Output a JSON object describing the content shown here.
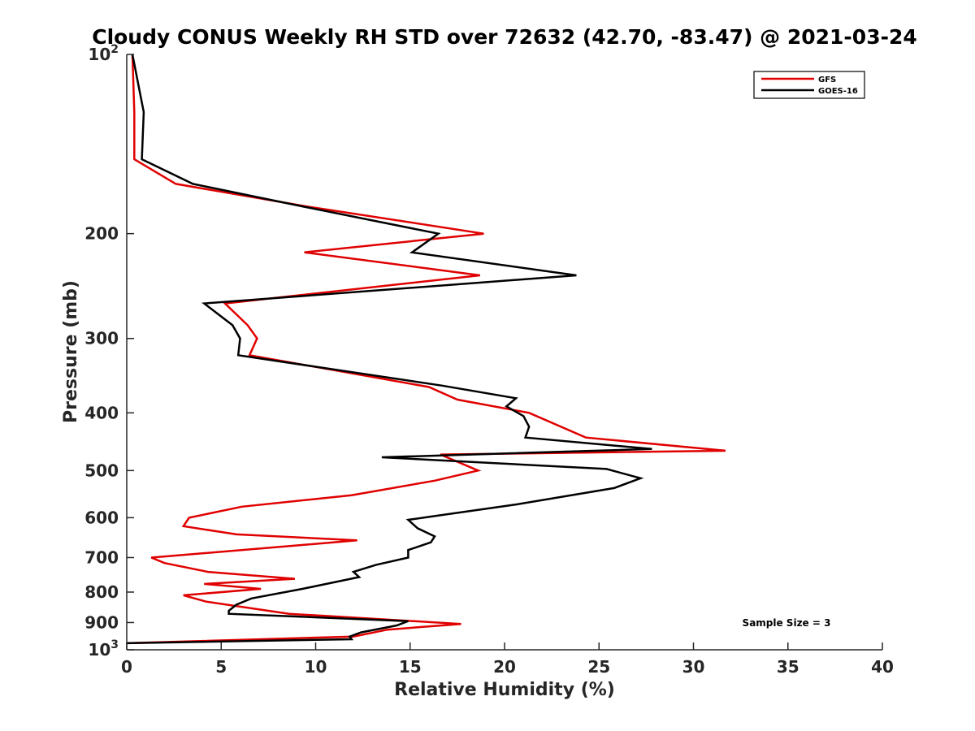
{
  "chart_data": {
    "type": "line",
    "title": "Cloudy CONUS Weekly RH STD over 72632 (42.70, -83.47) @ 2021-03-24",
    "xlabel": "Relative Humidity (%)",
    "ylabel": "Pressure (mb)",
    "xlim": [
      0,
      40
    ],
    "ylim": [
      100,
      1000
    ],
    "y_scale": "log",
    "y_reversed": true,
    "x_ticks": [
      0,
      5,
      10,
      15,
      20,
      25,
      30,
      35,
      40
    ],
    "y_ticks": [
      {
        "value": 100,
        "base": "10",
        "exp": "2"
      },
      {
        "value": 200,
        "label": "200"
      },
      {
        "value": 300,
        "label": "300"
      },
      {
        "value": 400,
        "label": "400"
      },
      {
        "value": 500,
        "label": "500"
      },
      {
        "value": 600,
        "label": "600"
      },
      {
        "value": 700,
        "label": "700"
      },
      {
        "value": 800,
        "label": "800"
      },
      {
        "value": 900,
        "label": "900"
      },
      {
        "value": 1000,
        "base": "10",
        "exp": "3"
      }
    ],
    "legend_position": "top-right",
    "annotation": "Sample Size = 3",
    "series": [
      {
        "name": "GFS",
        "color": "#e00000",
        "points": [
          [
            0.3,
            100
          ],
          [
            0.4,
            125
          ],
          [
            0.4,
            150
          ],
          [
            2.6,
            165
          ],
          [
            9.5,
            180
          ],
          [
            18.9,
            200
          ],
          [
            9.4,
            215
          ],
          [
            18.7,
            235
          ],
          [
            5.2,
            262
          ],
          [
            6.4,
            285
          ],
          [
            6.9,
            300
          ],
          [
            6.5,
            320
          ],
          [
            16.0,
            362
          ],
          [
            17.5,
            380
          ],
          [
            21.3,
            400
          ],
          [
            24.3,
            440
          ],
          [
            31.7,
            463
          ],
          [
            16.6,
            470
          ],
          [
            18.6,
            500
          ],
          [
            16.3,
            520
          ],
          [
            11.9,
            550
          ],
          [
            6.1,
            575
          ],
          [
            3.3,
            600
          ],
          [
            3.0,
            620
          ],
          [
            5.8,
            640
          ],
          [
            12.2,
            655
          ],
          [
            1.3,
            700
          ],
          [
            2.0,
            715
          ],
          [
            4.3,
            740
          ],
          [
            8.9,
            760
          ],
          [
            4.1,
            775
          ],
          [
            7.1,
            790
          ],
          [
            3.0,
            810
          ],
          [
            4.2,
            830
          ],
          [
            8.6,
            870
          ],
          [
            17.7,
            905
          ],
          [
            13.8,
            925
          ],
          [
            12.0,
            950
          ],
          [
            0.0,
            975
          ]
        ]
      },
      {
        "name": "GOES-16",
        "color": "#000000",
        "points": [
          [
            0.3,
            100
          ],
          [
            0.9,
            125
          ],
          [
            0.8,
            150
          ],
          [
            3.5,
            165
          ],
          [
            9.3,
            180
          ],
          [
            16.5,
            200
          ],
          [
            15.1,
            215
          ],
          [
            23.8,
            235
          ],
          [
            4.1,
            262
          ],
          [
            5.6,
            285
          ],
          [
            6.0,
            300
          ],
          [
            5.9,
            320
          ],
          [
            16.7,
            360
          ],
          [
            20.6,
            378
          ],
          [
            20.1,
            390
          ],
          [
            21.0,
            405
          ],
          [
            21.3,
            422
          ],
          [
            21.1,
            440
          ],
          [
            27.8,
            460
          ],
          [
            13.5,
            475
          ],
          [
            25.4,
            497
          ],
          [
            27.2,
            515
          ],
          [
            25.8,
            535
          ],
          [
            20.6,
            570
          ],
          [
            14.9,
            605
          ],
          [
            15.4,
            625
          ],
          [
            16.3,
            645
          ],
          [
            16.1,
            660
          ],
          [
            14.9,
            680
          ],
          [
            14.9,
            700
          ],
          [
            13.2,
            720
          ],
          [
            12.0,
            740
          ],
          [
            12.3,
            755
          ],
          [
            9.3,
            790
          ],
          [
            6.6,
            820
          ],
          [
            5.8,
            840
          ],
          [
            5.4,
            860
          ],
          [
            5.4,
            870
          ],
          [
            14.9,
            895
          ],
          [
            14.3,
            910
          ],
          [
            12.4,
            935
          ],
          [
            11.8,
            950
          ],
          [
            11.9,
            960
          ],
          [
            0.0,
            975
          ]
        ]
      }
    ]
  }
}
